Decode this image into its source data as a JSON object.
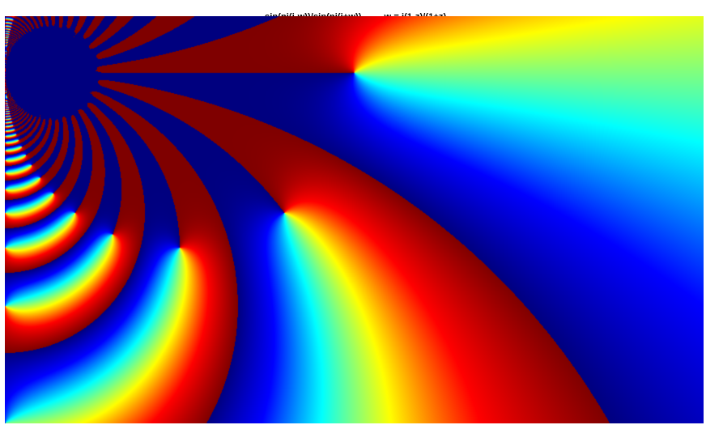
{
  "title": {
    "function": "sin(pi(i-w))/sin(pi(i+w))",
    "mapping": "w = i(1-z)/(1+z)"
  },
  "colormap": [
    "#00007f",
    "#0000ff",
    "#00ffff",
    "#ffff00",
    "#ff0000",
    "#7f0000"
  ],
  "domain_coloring": {
    "function": "sin(pi(i-w))/sin(pi(i+w))",
    "mapping": "w = i(1-z)/(1+z)",
    "coloring": "argument (phase) mapped through jet colormap"
  }
}
